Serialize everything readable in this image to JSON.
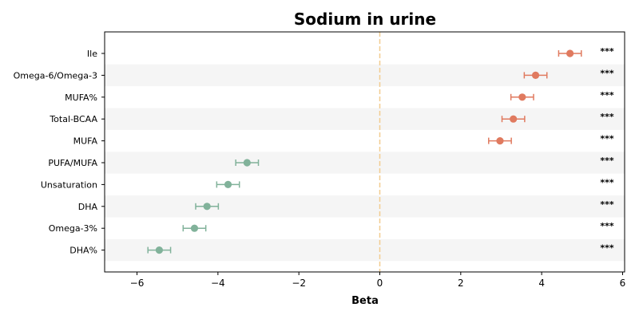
{
  "chart_data": {
    "type": "scatter",
    "title": "Sodium in urine",
    "xlabel": "Beta",
    "ylabel": "",
    "xlim": [
      -6.8,
      6.05
    ],
    "xticks": [
      -6,
      -4,
      -2,
      0,
      2,
      4,
      6
    ],
    "xtick_labels": [
      "−6",
      "−4",
      "−2",
      "0",
      "2",
      "4",
      "6"
    ],
    "reference_line": 0,
    "row_shading": "alternating",
    "colors": {
      "positive": "#e07a5f",
      "negative": "#81b29a",
      "reference_line": "#f2cc8f",
      "band": "#f5f5f5"
    },
    "points": [
      {
        "label": "Ile",
        "beta": 4.7,
        "ci_low": 4.42,
        "ci_high": 4.98,
        "sig": "***"
      },
      {
        "label": "Omega-6/Omega-3",
        "beta": 3.85,
        "ci_low": 3.57,
        "ci_high": 4.13,
        "sig": "***"
      },
      {
        "label": "MUFA%",
        "beta": 3.52,
        "ci_low": 3.24,
        "ci_high": 3.8,
        "sig": "***"
      },
      {
        "label": "Total-BCAA",
        "beta": 3.3,
        "ci_low": 3.02,
        "ci_high": 3.58,
        "sig": "***"
      },
      {
        "label": "MUFA",
        "beta": 2.97,
        "ci_low": 2.69,
        "ci_high": 3.25,
        "sig": "***"
      },
      {
        "label": "PUFA/MUFA",
        "beta": -3.28,
        "ci_low": -3.56,
        "ci_high": -3.0,
        "sig": "***"
      },
      {
        "label": "Unsaturation",
        "beta": -3.75,
        "ci_low": -4.03,
        "ci_high": -3.47,
        "sig": "***"
      },
      {
        "label": "DHA",
        "beta": -4.27,
        "ci_low": -4.55,
        "ci_high": -3.99,
        "sig": "***"
      },
      {
        "label": "Omega-3%",
        "beta": -4.58,
        "ci_low": -4.86,
        "ci_high": -4.3,
        "sig": "***"
      },
      {
        "label": "DHA%",
        "beta": -5.45,
        "ci_low": -5.73,
        "ci_high": -5.17,
        "sig": "***"
      }
    ]
  }
}
